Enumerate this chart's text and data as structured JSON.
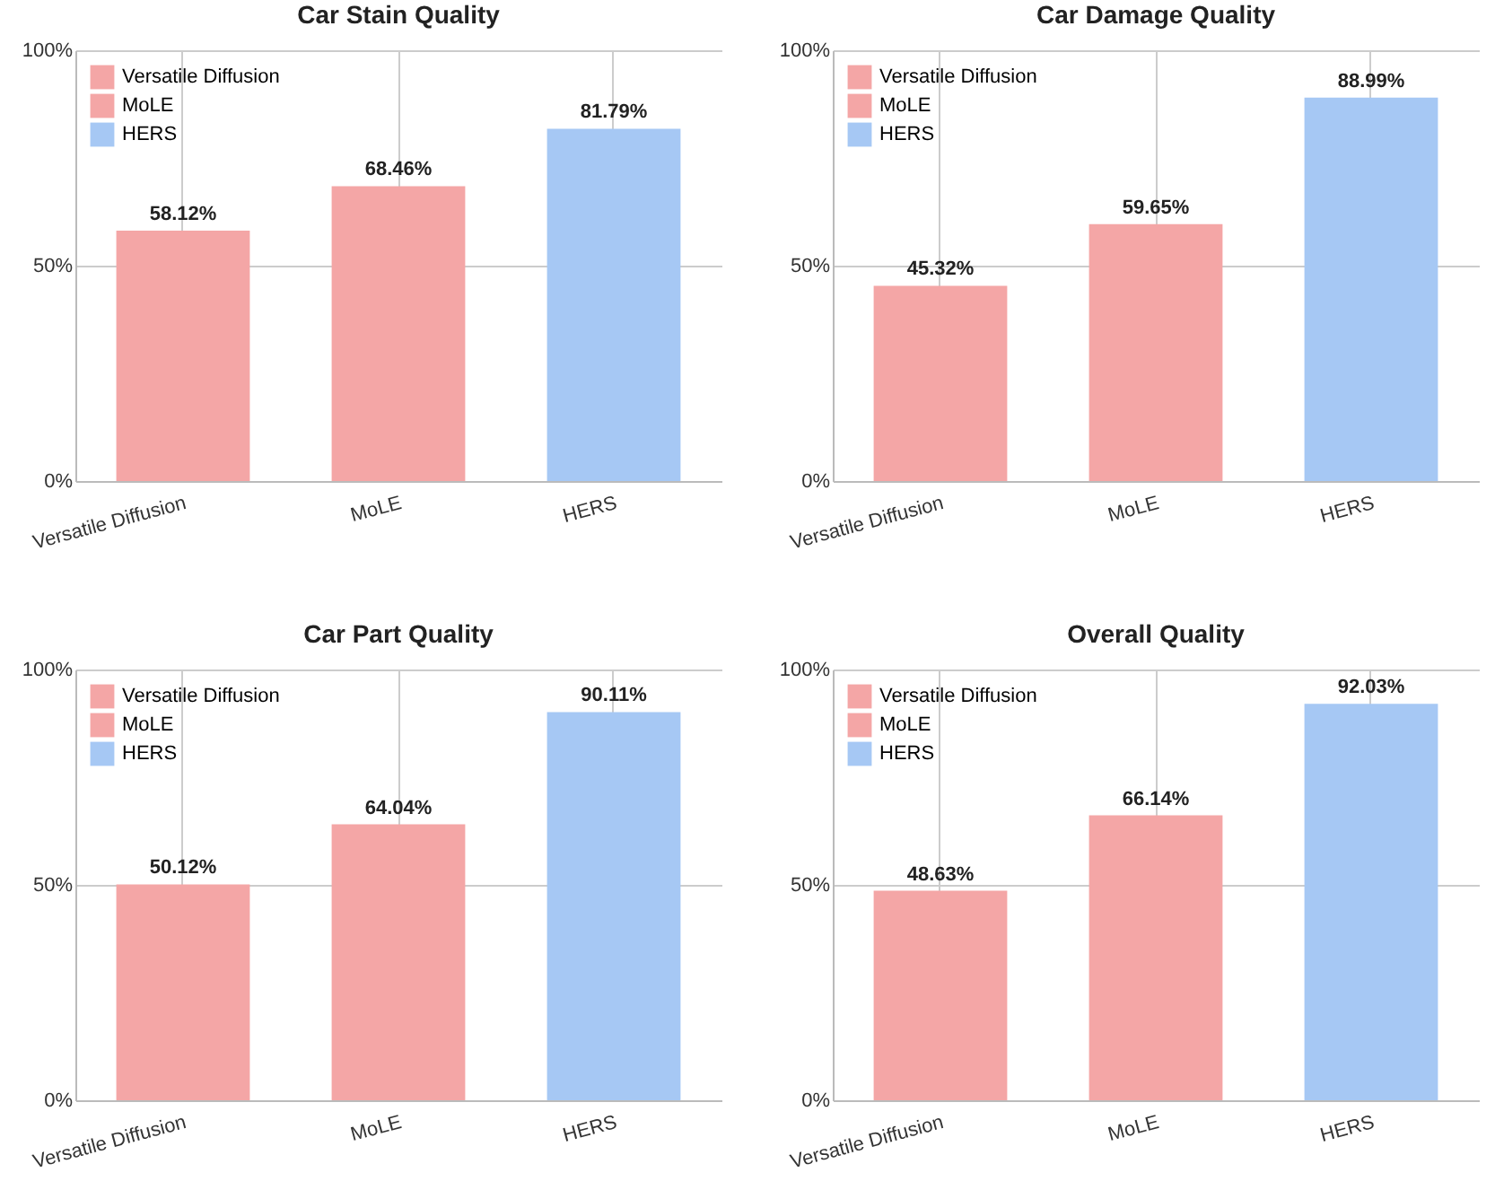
{
  "chart_data": [
    {
      "type": "bar",
      "title": "Car Stain Quality",
      "categories": [
        "Versatile Diffusion",
        "MoLE",
        "HERS"
      ],
      "series": [
        {
          "name": "Versatile Diffusion",
          "color": "#f4a6a6",
          "values": [
            58.12,
            null,
            null
          ],
          "value_labels": [
            "58.12%",
            null,
            null
          ]
        },
        {
          "name": "MoLE",
          "color": "#f4a6a6",
          "values": [
            null,
            68.46,
            null
          ],
          "value_labels": [
            null,
            "68.46%",
            null
          ]
        },
        {
          "name": "HERS",
          "color": "#a6c8f4",
          "values": [
            null,
            null,
            81.79
          ],
          "value_labels": [
            null,
            null,
            "81.79%"
          ]
        }
      ],
      "ylim": [
        0,
        100
      ],
      "yticks": [
        {
          "value": 0,
          "label": "0%"
        },
        {
          "value": 50,
          "label": "50%"
        },
        {
          "value": 100,
          "label": "100%"
        }
      ],
      "grid": true,
      "legend": "top left"
    },
    {
      "type": "bar",
      "title": "Car Damage Quality",
      "categories": [
        "Versatile Diffusion",
        "MoLE",
        "HERS"
      ],
      "series": [
        {
          "name": "Versatile Diffusion",
          "color": "#f4a6a6",
          "values": [
            45.32,
            null,
            null
          ],
          "value_labels": [
            "45.32%",
            null,
            null
          ]
        },
        {
          "name": "MoLE",
          "color": "#f4a6a6",
          "values": [
            null,
            59.65,
            null
          ],
          "value_labels": [
            null,
            "59.65%",
            null
          ]
        },
        {
          "name": "HERS",
          "color": "#a6c8f4",
          "values": [
            null,
            null,
            88.99
          ],
          "value_labels": [
            null,
            null,
            "88.99%"
          ]
        }
      ],
      "ylim": [
        0,
        100
      ],
      "yticks": [
        {
          "value": 0,
          "label": "0%"
        },
        {
          "value": 50,
          "label": "50%"
        },
        {
          "value": 100,
          "label": "100%"
        }
      ],
      "grid": true,
      "legend": "top left"
    },
    {
      "type": "bar",
      "title": "Car Part Quality",
      "categories": [
        "Versatile Diffusion",
        "MoLE",
        "HERS"
      ],
      "series": [
        {
          "name": "Versatile Diffusion",
          "color": "#f4a6a6",
          "values": [
            50.12,
            null,
            null
          ],
          "value_labels": [
            "50.12%",
            null,
            null
          ]
        },
        {
          "name": "MoLE",
          "color": "#f4a6a6",
          "values": [
            null,
            64.04,
            null
          ],
          "value_labels": [
            null,
            "64.04%",
            null
          ]
        },
        {
          "name": "HERS",
          "color": "#a6c8f4",
          "values": [
            null,
            null,
            90.11
          ],
          "value_labels": [
            null,
            null,
            "90.11%"
          ]
        }
      ],
      "ylim": [
        0,
        100
      ],
      "yticks": [
        {
          "value": 0,
          "label": "0%"
        },
        {
          "value": 50,
          "label": "50%"
        },
        {
          "value": 100,
          "label": "100%"
        }
      ],
      "grid": true,
      "legend": "top left"
    },
    {
      "type": "bar",
      "title": "Overall Quality",
      "categories": [
        "Versatile Diffusion",
        "MoLE",
        "HERS"
      ],
      "series": [
        {
          "name": "Versatile Diffusion",
          "color": "#f4a6a6",
          "values": [
            48.63,
            null,
            null
          ],
          "value_labels": [
            "48.63%",
            null,
            null
          ]
        },
        {
          "name": "MoLE",
          "color": "#f4a6a6",
          "values": [
            null,
            66.14,
            null
          ],
          "value_labels": [
            null,
            "66.14%",
            null
          ]
        },
        {
          "name": "HERS",
          "color": "#a6c8f4",
          "values": [
            null,
            null,
            92.03
          ],
          "value_labels": [
            null,
            null,
            "92.03%"
          ]
        }
      ],
      "ylim": [
        0,
        100
      ],
      "yticks": [
        {
          "value": 0,
          "label": "0%"
        },
        {
          "value": 50,
          "label": "50%"
        },
        {
          "value": 100,
          "label": "100%"
        }
      ],
      "grid": true,
      "legend": "top left"
    }
  ]
}
